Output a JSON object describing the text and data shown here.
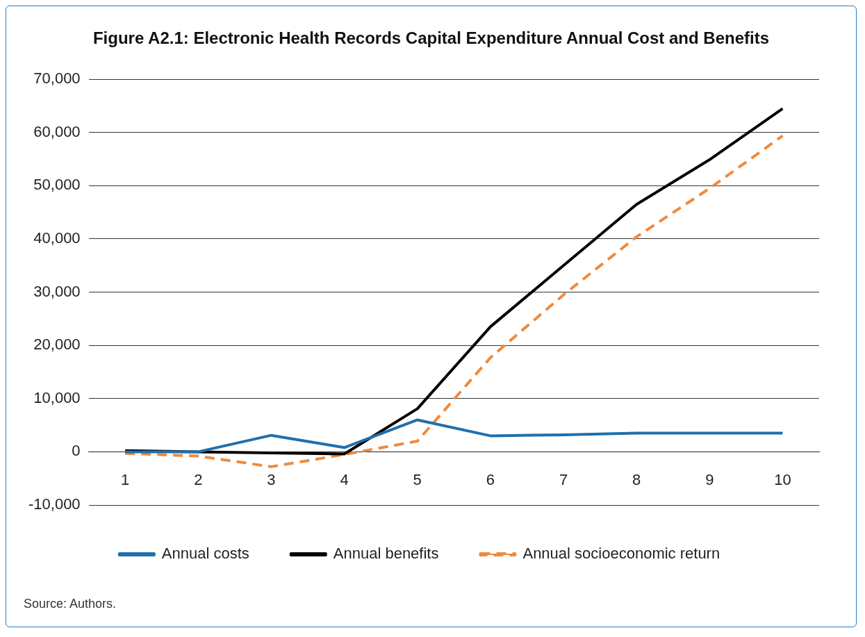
{
  "chart_data": {
    "type": "line",
    "title": "Figure A2.1: Electronic Health Records Capital Expenditure Annual Cost and Benefits",
    "categories": [
      "1",
      "2",
      "3",
      "4",
      "5",
      "6",
      "7",
      "8",
      "9",
      "10"
    ],
    "series": [
      {
        "name": "Annual costs",
        "color": "#1f6fad",
        "values": [
          0,
          0,
          3100,
          800,
          6000,
          3000,
          3200,
          3500,
          3500,
          3500
        ]
      },
      {
        "name": "Annual benefits",
        "color": "#000000",
        "values": [
          200,
          0,
          -200,
          -400,
          8100,
          23500,
          35000,
          46500,
          54900,
          64500
        ]
      },
      {
        "name": "Annual socioeconomic return",
        "color": "#f08a3c",
        "line_style": "dashed",
        "values": [
          -300,
          -800,
          -2800,
          -500,
          2000,
          17700,
          29500,
          40400,
          49500,
          59400
        ]
      }
    ],
    "ylim": [
      -10000,
      70000
    ],
    "yticks": [
      {
        "value": -10000,
        "label": "-10,000"
      },
      {
        "value": 0,
        "label": "0"
      },
      {
        "value": 10000,
        "label": "10,000"
      },
      {
        "value": 20000,
        "label": "20,000"
      },
      {
        "value": 30000,
        "label": "30,000"
      },
      {
        "value": 40000,
        "label": "40,000"
      },
      {
        "value": 50000,
        "label": "50,000"
      },
      {
        "value": 60000,
        "label": "60,000"
      },
      {
        "value": 70000,
        "label": "70,000"
      }
    ],
    "grid": "y",
    "legend": "bottom",
    "marker": "none",
    "annotations": [
      "Source: Authors."
    ]
  }
}
